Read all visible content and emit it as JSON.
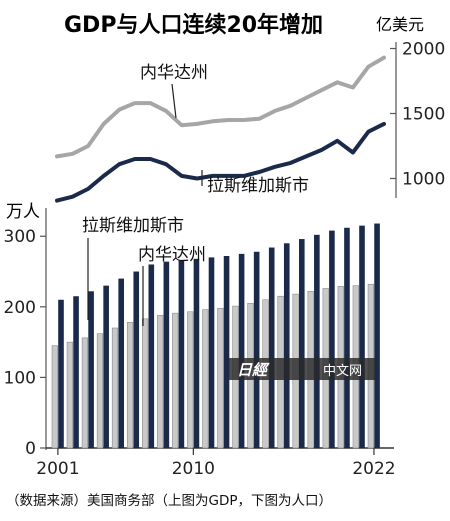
{
  "chart_data": [
    {
      "type": "line",
      "title": "GDP与人口连续20年增加",
      "unit": "亿美元",
      "y_ticks": [
        2000,
        1500,
        1000
      ],
      "ylim": [
        850,
        2050
      ],
      "x": [
        2001,
        2002,
        2003,
        2004,
        2005,
        2006,
        2007,
        2008,
        2009,
        2010,
        2011,
        2012,
        2013,
        2014,
        2015,
        2016,
        2017,
        2018,
        2019,
        2020,
        2021,
        2022
      ],
      "series": [
        {
          "name": "内华达州",
          "color": "#a6a6a6",
          "values": [
            1170,
            1190,
            1250,
            1420,
            1530,
            1580,
            1580,
            1520,
            1410,
            1420,
            1440,
            1450,
            1450,
            1460,
            1520,
            1560,
            1620,
            1680,
            1740,
            1700,
            1860,
            1930
          ]
        },
        {
          "name": "拉斯维加斯市",
          "color": "#1b2a4a",
          "values": [
            830,
            860,
            920,
            1020,
            1110,
            1150,
            1150,
            1110,
            1020,
            1000,
            1020,
            1020,
            1020,
            1050,
            1090,
            1120,
            1170,
            1220,
            1290,
            1200,
            1360,
            1420
          ]
        }
      ]
    },
    {
      "type": "bar",
      "unit": "万人",
      "y_ticks": [
        0,
        100,
        200,
        300
      ],
      "ylim": [
        0,
        340
      ],
      "x_tick_labels": [
        "2001",
        "2010",
        "2022"
      ],
      "categories": [
        2001,
        2002,
        2003,
        2004,
        2005,
        2006,
        2007,
        2008,
        2009,
        2010,
        2011,
        2012,
        2013,
        2014,
        2015,
        2016,
        2017,
        2018,
        2019,
        2020,
        2021,
        2022
      ],
      "series": [
        {
          "name": "内华达州",
          "color": "#c9c9c9",
          "values": [
            145,
            150,
            156,
            162,
            170,
            178,
            183,
            188,
            191,
            193,
            196,
            198,
            201,
            205,
            210,
            215,
            218,
            222,
            226,
            229,
            230,
            232
          ]
        },
        {
          "name": "拉斯维加斯市",
          "color": "#1b2a4a",
          "values": [
            210,
            215,
            222,
            230,
            240,
            250,
            260,
            264,
            266,
            268,
            270,
            272,
            275,
            278,
            284,
            290,
            296,
            302,
            308,
            312,
            315,
            318
          ]
        }
      ]
    }
  ],
  "watermark": "中文网",
  "source": "（数据来源）美国商务部（上图为GDP，下图为人口）"
}
